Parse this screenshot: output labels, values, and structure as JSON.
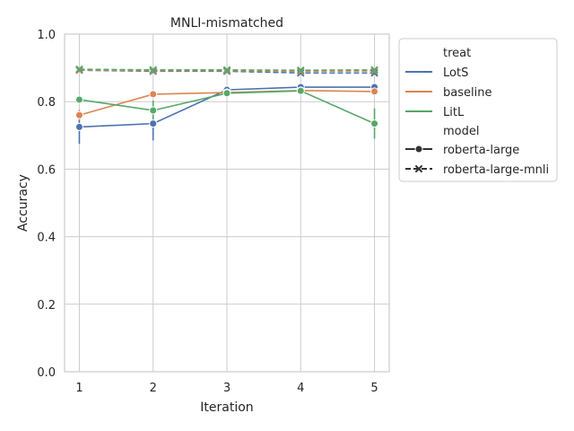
{
  "chart_data": {
    "type": "line",
    "title": "MNLI-mismatched",
    "xlabel": "Iteration",
    "ylabel": "Accuracy",
    "x": [
      1,
      2,
      3,
      4,
      5
    ],
    "xticks": [
      "1",
      "2",
      "3",
      "4",
      "5"
    ],
    "xlim": [
      0.8,
      5.2
    ],
    "ylim": [
      0.0,
      1.0
    ],
    "yticks": [
      "0.0",
      "0.2",
      "0.4",
      "0.6",
      "0.8",
      "1.0"
    ],
    "ytick_values": [
      0.0,
      0.2,
      0.4,
      0.6,
      0.8,
      1.0
    ],
    "grid": true,
    "legend_placement": "outside right",
    "legend": {
      "hue_title": "treat",
      "style_title": "model",
      "treat_entries": [
        {
          "label": "LotS",
          "color": "#4c72b0"
        },
        {
          "label": "baseline",
          "color": "#dd8452"
        },
        {
          "label": "LitL",
          "color": "#55a868"
        }
      ],
      "model_entries": [
        {
          "label": "roberta-large",
          "marker": "circle",
          "dash": "solid"
        },
        {
          "label": "roberta-large-mnli",
          "marker": "x",
          "dash": "dashed"
        }
      ]
    },
    "series": [
      {
        "treat": "LotS",
        "model": "roberta-large",
        "color": "#4c72b0",
        "marker": "circle",
        "dash": "solid",
        "values": [
          0.725,
          0.735,
          0.835,
          0.843,
          0.843
        ],
        "error_low": [
          0.675,
          0.685,
          0.825,
          0.838,
          0.838
        ],
        "error_high": [
          0.775,
          0.785,
          0.845,
          0.848,
          0.848
        ]
      },
      {
        "treat": "baseline",
        "model": "roberta-large",
        "color": "#dd8452",
        "marker": "circle",
        "dash": "solid",
        "values": [
          0.76,
          0.822,
          0.827,
          0.833,
          0.83
        ],
        "error_low": [
          0.745,
          0.818,
          0.822,
          0.829,
          0.826
        ],
        "error_high": [
          0.775,
          0.826,
          0.832,
          0.837,
          0.834
        ]
      },
      {
        "treat": "LitL",
        "model": "roberta-large",
        "color": "#55a868",
        "marker": "circle",
        "dash": "solid",
        "values": [
          0.806,
          0.774,
          0.825,
          0.832,
          0.735
        ],
        "error_low": [
          0.8,
          0.745,
          0.82,
          0.828,
          0.69
        ],
        "error_high": [
          0.812,
          0.803,
          0.83,
          0.836,
          0.78
        ]
      },
      {
        "treat": "LotS",
        "model": "roberta-large-mnli",
        "color": "#4c72b0",
        "marker": "x",
        "dash": "dashed",
        "values": [
          0.893,
          0.89,
          0.89,
          0.885,
          0.885
        ],
        "error_low": [
          0.891,
          0.888,
          0.888,
          0.883,
          0.883
        ],
        "error_high": [
          0.895,
          0.892,
          0.892,
          0.887,
          0.887
        ]
      },
      {
        "treat": "baseline",
        "model": "roberta-large-mnli",
        "color": "#dd8452",
        "marker": "x",
        "dash": "dashed",
        "values": [
          0.894,
          0.892,
          0.892,
          0.89,
          0.891
        ],
        "error_low": [
          0.892,
          0.89,
          0.89,
          0.888,
          0.889
        ],
        "error_high": [
          0.896,
          0.894,
          0.894,
          0.892,
          0.893
        ]
      },
      {
        "treat": "LitL",
        "model": "roberta-large-mnli",
        "color": "#55a868",
        "marker": "x",
        "dash": "dashed",
        "values": [
          0.896,
          0.894,
          0.894,
          0.893,
          0.894
        ],
        "error_low": [
          0.894,
          0.892,
          0.892,
          0.891,
          0.892
        ],
        "error_high": [
          0.898,
          0.896,
          0.896,
          0.895,
          0.896
        ]
      }
    ]
  }
}
